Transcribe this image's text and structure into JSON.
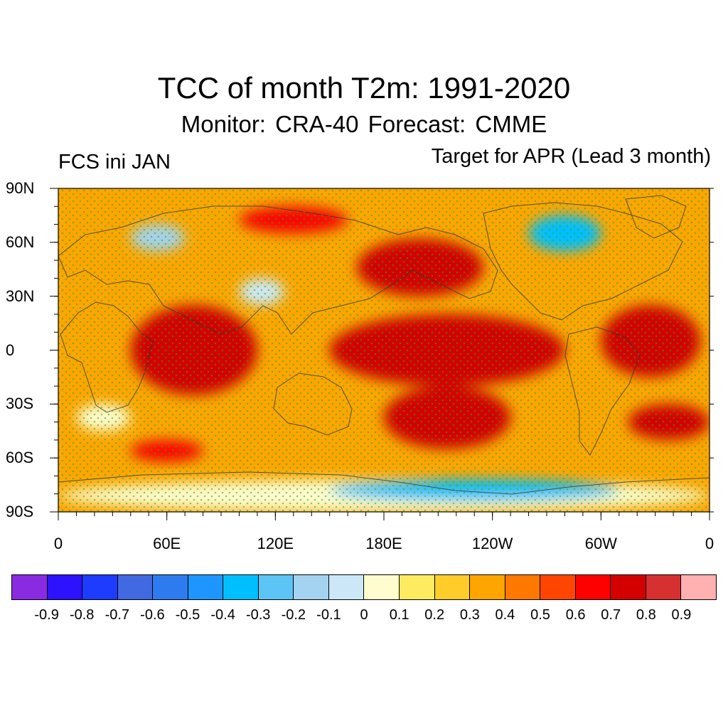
{
  "title": "TCC of month T2m: 1991-2020",
  "subtitle": "Monitor: CRA-40   Forecast: CMME",
  "left_label": "FCS ini JAN",
  "right_label": "Target for APR (Lead 3 month)",
  "map": {
    "projection": "cylindrical-equidistant",
    "lat_range": [
      -90,
      90
    ],
    "lon_range": [
      0,
      360
    ],
    "lat_ticks": [
      "90N",
      "60N",
      "30N",
      "0",
      "30S",
      "60S",
      "90S"
    ],
    "lon_ticks": [
      "0",
      "60E",
      "120E",
      "180E",
      "120W",
      "60W",
      "0"
    ],
    "stipple_color": "#22aa22",
    "stipple_meaning": "significant correlation",
    "regions": [
      {
        "name": "tropical-pacific",
        "lon": [
          150,
          280
        ],
        "lat": [
          -20,
          20
        ],
        "value": 0.75
      },
      {
        "name": "north-pacific",
        "lon": [
          165,
          235
        ],
        "lat": [
          30,
          62
        ],
        "value": 0.75
      },
      {
        "name": "indian-ocean",
        "lon": [
          40,
          110
        ],
        "lat": [
          -25,
          25
        ],
        "value": 0.7
      },
      {
        "name": "south-pacific",
        "lon": [
          180,
          250
        ],
        "lat": [
          -55,
          -20
        ],
        "value": 0.7
      },
      {
        "name": "tropical-atlantic",
        "lon": [
          300,
          355
        ],
        "lat": [
          -15,
          25
        ],
        "value": 0.7
      },
      {
        "name": "south-atlantic",
        "lon": [
          315,
          360
        ],
        "lat": [
          -50,
          -30
        ],
        "value": 0.7
      },
      {
        "name": "arctic-siberia",
        "lon": [
          100,
          160
        ],
        "lat": [
          65,
          80
        ],
        "value": 0.65
      },
      {
        "name": "southern-ocean",
        "lon": [
          40,
          80
        ],
        "lat": [
          -62,
          -50
        ],
        "value": 0.65
      },
      {
        "name": "antarctica",
        "lon": [
          0,
          360
        ],
        "lat": [
          -90,
          -72
        ],
        "value": 0.05
      },
      {
        "name": "antarctic-low",
        "lon": [
          150,
          310
        ],
        "lat": [
          -84,
          -72
        ],
        "value": -0.3
      },
      {
        "name": "siberia-west",
        "lon": [
          40,
          70
        ],
        "lat": [
          55,
          70
        ],
        "value": -0.2
      },
      {
        "name": "canada-arctic",
        "lon": [
          260,
          300
        ],
        "lat": [
          55,
          75
        ],
        "value": -0.3
      },
      {
        "name": "north-china",
        "lon": [
          100,
          125
        ],
        "lat": [
          25,
          40
        ],
        "value": -0.1
      },
      {
        "name": "southern-africa-ocean",
        "lon": [
          10,
          40
        ],
        "lat": [
          -45,
          -30
        ],
        "value": 0.05
      }
    ]
  },
  "colorbar": {
    "colors": [
      "#8a2be2",
      "#2d12ff",
      "#1e3cff",
      "#4169e1",
      "#2e7bf0",
      "#1e96ff",
      "#00bfff",
      "#5cc5f5",
      "#a3d3f0",
      "#cce8f8",
      "#fffccf",
      "#ffeb60",
      "#ffcc28",
      "#ffa500",
      "#ff7800",
      "#ff4500",
      "#ff0000",
      "#d40000",
      "#d63030",
      "#ffb0b0"
    ],
    "labels": [
      "-0.9",
      "-0.8",
      "-0.7",
      "-0.6",
      "-0.5",
      "-0.4",
      "-0.3",
      "-0.2",
      "-0.1",
      "0",
      "0.1",
      "0.2",
      "0.3",
      "0.4",
      "0.5",
      "0.6",
      "0.7",
      "0.8",
      "0.9"
    ]
  }
}
